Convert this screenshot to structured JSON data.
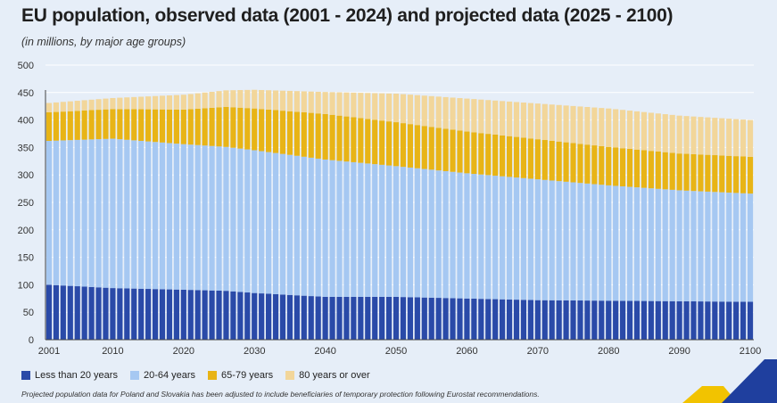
{
  "colors": {
    "background": "#e6eef8",
    "lt20": "#2a4aa8",
    "a2064": "#a6c8f2",
    "a6579": "#e8b416",
    "a80": "#f2d69a",
    "grid": "#ffffff",
    "logo_blue": "#1f3f9e",
    "logo_yellow": "#f2c300"
  },
  "chart_data": {
    "type": "bar",
    "stacked": true,
    "title": "EU population, observed data (2001 - 2024) and projected data (2025 - 2100)",
    "subtitle": "(in millions, by major age groups)",
    "xlabel": "",
    "ylabel": "",
    "ylim": [
      0,
      500
    ],
    "yticks": [
      "0",
      "50",
      "100",
      "150",
      "200",
      "250",
      "300",
      "350",
      "400",
      "450",
      "500"
    ],
    "xticks": [
      "2001",
      "2010",
      "2020",
      "2030",
      "2040",
      "2050",
      "2060",
      "2070",
      "2080",
      "2090",
      "2100"
    ],
    "grid": true,
    "legend_position": "bottom",
    "x_start": 2001,
    "x_end": 2100,
    "anchors": {
      "years": [
        2001,
        2010,
        2020,
        2026,
        2030,
        2040,
        2050,
        2060,
        2070,
        2080,
        2090,
        2100
      ],
      "lt20": [
        100,
        94,
        91,
        89,
        85,
        78,
        78,
        75,
        72,
        71,
        70,
        69
      ],
      "a2064": [
        262,
        272,
        265,
        262,
        260,
        250,
        238,
        228,
        220,
        210,
        202,
        197
      ],
      "a6579": [
        52,
        54,
        63,
        73,
        76,
        83,
        80,
        76,
        73,
        70,
        67,
        67
      ],
      "a80": [
        17,
        20,
        27,
        30,
        34,
        40,
        52,
        60,
        65,
        70,
        69,
        67
      ]
    },
    "series": [
      {
        "name": "Less than 20 years",
        "key": "lt20"
      },
      {
        "name": "20-64 years",
        "key": "a2064"
      },
      {
        "name": "65-79 years",
        "key": "a6579"
      },
      {
        "name": "80 years or over",
        "key": "a80"
      }
    ]
  },
  "legend": {
    "items": [
      "Less than 20 years",
      "20-64 years",
      "65-79 years",
      "80 years or over"
    ]
  },
  "footnote": "Projected population data for Poland and Slovakia has been adjusted to include beneficiaries of temporary protection following Eurostat recommendations."
}
